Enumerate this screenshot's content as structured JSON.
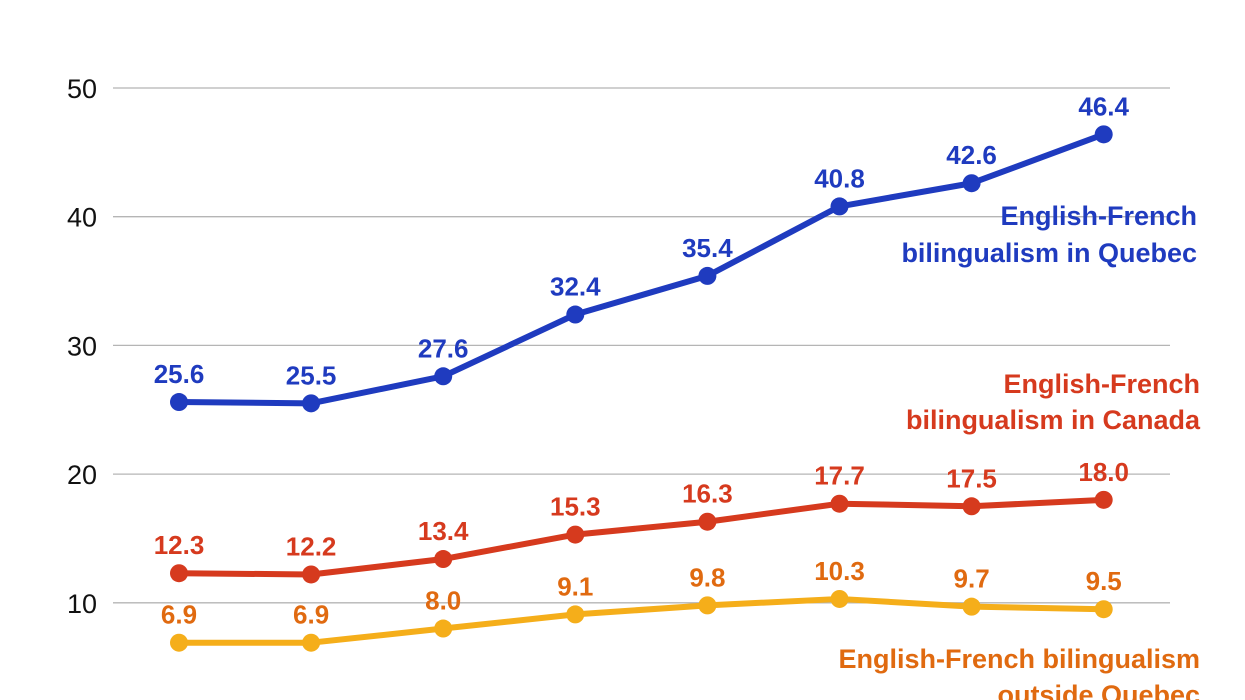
{
  "chart_data": {
    "type": "line",
    "title": "",
    "xlabel": "",
    "ylabel": "",
    "ylim": [
      0,
      50
    ],
    "yticks": [
      10,
      20,
      30,
      40,
      50
    ],
    "grid": true,
    "series": [
      {
        "name": "English-French bilingualism in Quebec",
        "label_lines": [
          "English-French",
          "bilingualism in Quebec"
        ],
        "color": "#1f3bbf",
        "label_color": "#1f3bbf",
        "values": [
          25.6,
          25.5,
          27.6,
          32.4,
          35.4,
          40.8,
          42.6,
          46.4
        ],
        "value_labels": [
          "25.6",
          "25.5",
          "27.6",
          "32.4",
          "35.4",
          "40.8",
          "42.6",
          "46.4"
        ]
      },
      {
        "name": "English-French bilingualism in Canada",
        "label_lines": [
          "English-French",
          "bilingualism in Canada"
        ],
        "color": "#d63a1e",
        "label_color": "#d63a1e",
        "values": [
          12.3,
          12.2,
          13.4,
          15.3,
          16.3,
          17.7,
          17.5,
          18.0
        ],
        "value_labels": [
          "12.3",
          "12.2",
          "13.4",
          "15.3",
          "16.3",
          "17.7",
          "17.5",
          "18.0"
        ]
      },
      {
        "name": "English-French bilingualism outside Quebec",
        "label_lines": [
          "English-French bilingualism",
          "outside Quebec"
        ],
        "color": "#f5ae1a",
        "label_color": "#e06a10",
        "values": [
          6.9,
          6.9,
          8.0,
          9.1,
          9.8,
          10.3,
          9.7,
          9.5
        ],
        "value_labels": [
          "6.9",
          "6.9",
          "8.0",
          "9.1",
          "9.8",
          "10.3",
          "9.7",
          "9.5"
        ]
      }
    ]
  }
}
